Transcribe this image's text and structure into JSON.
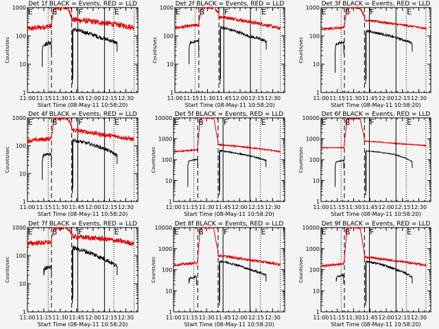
{
  "figure": {
    "background": "#f4f4f4",
    "colors": {
      "events": "#000000",
      "lld": "#e00000",
      "axes": "#000000"
    }
  },
  "chart_data": {
    "type": "line",
    "layout": "3x3 grid",
    "xlabel": "Start Time (08-May-11 10:58:20)",
    "ylabel": "Counts/sec",
    "yscale": "log",
    "x_unit": "minutes after 11:00",
    "xlim": [
      0,
      101
    ],
    "x_ticks": [
      0,
      15,
      30,
      45,
      60,
      75,
      90
    ],
    "x_tick_labels": [
      "11:00",
      "11:15",
      "11:30",
      "11:45",
      "12:00",
      "12:15",
      "12:30"
    ],
    "legend_text": "BLACK = Events, RED = LLD",
    "series_names": [
      "Events",
      "LLD"
    ],
    "marker_letters": [
      "E",
      "B",
      "F",
      "E"
    ],
    "panels": [
      {
        "title": "Det 1f BLACK = Events, RED = LLD",
        "ylim": [
          1,
          1000
        ],
        "y_tick_labels": [
          "1",
          "10",
          "100",
          "1000"
        ],
        "vlines": {
          "dotted": [
            19,
            79,
            97.5
          ],
          "dashed": [
            22,
            40.5
          ],
          "solid": [
            46,
            70.5
          ]
        },
        "lld": {
          "pre": 175,
          "pre_end": 220,
          "peak": 1000,
          "post": [
            380,
            290,
            200
          ],
          "noise": 0.1
        },
        "events": {
          "start": 13.5,
          "low": 8,
          "pre": 55,
          "gap_end": 22,
          "post_start": 41.5,
          "post": [
            170,
            90,
            55
          ],
          "end": 82,
          "noise": 0.07
        }
      },
      {
        "title": "Det 2f BLACK = Events, RED = LLD",
        "ylim": [
          1,
          1000
        ],
        "y_tick_labels": [
          "1",
          "10",
          "100",
          "1000"
        ],
        "vlines": {
          "dotted": [
            18.5,
            79,
            97
          ],
          "dashed": [
            22,
            40.5
          ],
          "solid": [
            45,
            69.5
          ]
        },
        "lld": {
          "pre": 190,
          "pre_end": 240,
          "peak": 1000,
          "post": [
            480,
            310,
            180
          ],
          "noise": 0.06
        },
        "events": {
          "start": 13,
          "low": 10,
          "pre": 65,
          "gap_end": 22,
          "post_start": 42,
          "post": [
            200,
            100,
            65
          ],
          "end": 84,
          "noise": 0.05
        }
      },
      {
        "title": "Det 3f BLACK = Events, RED = LLD",
        "ylim": [
          1,
          1000
        ],
        "y_tick_labels": [
          "1",
          "10",
          "100",
          "1000"
        ],
        "vlines": {
          "dotted": [
            18.5,
            78.5,
            96.5
          ],
          "dashed": [
            21.5,
            40
          ],
          "solid": [
            44.5,
            69
          ]
        },
        "lld": {
          "pre": 170,
          "pre_end": 200,
          "peak": 1000,
          "post": [
            360,
            260,
            180
          ],
          "noise": 0.04
        },
        "events": {
          "start": 13,
          "low": 5,
          "pre": 58,
          "gap_end": 21,
          "post_start": 41.5,
          "post": [
            150,
            90,
            55
          ],
          "end": 84,
          "noise": 0.04
        }
      },
      {
        "title": "Det 4f BLACK = Events, RED = LLD",
        "ylim": [
          1,
          1000
        ],
        "y_tick_labels": [
          "1",
          "10",
          "100",
          "1000"
        ],
        "vlines": {
          "dotted": [
            19,
            79,
            97.5
          ],
          "dashed": [
            22,
            40.5
          ],
          "solid": [
            46,
            70.5
          ]
        },
        "lld": {
          "pre": 150,
          "pre_end": 180,
          "peak": 1000,
          "post": [
            370,
            250,
            170
          ],
          "noise": 0.08
        },
        "events": {
          "start": 13.5,
          "low": 6,
          "pre": 50,
          "gap_end": 22,
          "post_start": 41.5,
          "post": [
            160,
            90,
            45
          ],
          "end": 82,
          "noise": 0.06
        }
      },
      {
        "title": "Det 5f BLACK = Events, RED = LLD",
        "ylim": [
          1,
          10000
        ],
        "y_tick_labels": [
          "1",
          "10",
          "100",
          "1000",
          "10000"
        ],
        "vlines": {
          "dotted": [
            18.5,
            79,
            97
          ],
          "dashed": [
            22,
            40.5
          ],
          "solid": [
            45,
            69.5
          ]
        },
        "lld": {
          "pre": 240,
          "pre_end": 300,
          "peak": 10000,
          "post": [
            520,
            380,
            240
          ],
          "noise": 0.03
        },
        "events": {
          "start": 13,
          "low": 5,
          "pre": 100,
          "gap_end": 22,
          "post_start": 42,
          "post": [
            270,
            160,
            90
          ],
          "end": 84,
          "noise": 0.03
        }
      },
      {
        "title": "Det 6f BLACK = Events, RED = LLD",
        "ylim": [
          1,
          10000
        ],
        "y_tick_labels": [
          "1",
          "10",
          "100",
          "1000",
          "10000"
        ],
        "vlines": {
          "dotted": [
            18.5,
            78.5,
            96.5
          ],
          "dashed": [
            21.5,
            40
          ],
          "solid": [
            44.5,
            69
          ]
        },
        "lld": {
          "pre": 370,
          "pre_end": 380,
          "peak": 9000,
          "post": [
            780,
            600,
            470
          ],
          "noise": 0.02
        },
        "events": {
          "start": 13,
          "low": 5,
          "pre": 90,
          "gap_end": 21,
          "post_start": 41.5,
          "post": [
            270,
            180,
            80
          ],
          "end": 84,
          "noise": 0.02
        }
      },
      {
        "title": "Det 7f BLACK = Events, RED = LLD",
        "ylim": [
          1,
          1000
        ],
        "y_tick_labels": [
          "1",
          "10",
          "100",
          "1000"
        ],
        "vlines": {
          "dotted": [
            19,
            79,
            97.5
          ],
          "dashed": [
            22,
            40.5
          ],
          "solid": [
            46,
            70.5
          ]
        },
        "lld": {
          "pre": 270,
          "pre_end": 300,
          "peak": 1000,
          "post": [
            480,
            400,
            270
          ],
          "noise": 0.09
        },
        "events": {
          "start": 15,
          "low": 35,
          "pre": 40,
          "gap_end": 22,
          "post_start": 41.5,
          "post": [
            190,
            90,
            40
          ],
          "end": 82,
          "noise": 0.08
        }
      },
      {
        "title": "Det 8f BLACK = Events, RED = LLD",
        "ylim": [
          1,
          10000
        ],
        "y_tick_labels": [
          "1",
          "10",
          "100",
          "1000",
          "10000"
        ],
        "vlines": {
          "dotted": [
            18.5,
            79,
            97
          ],
          "dashed": [
            22,
            40.5
          ],
          "solid": [
            45,
            69.5
          ]
        },
        "lld": {
          "pre": 165,
          "pre_end": 210,
          "peak": 10000,
          "post": [
            470,
            290,
            170
          ],
          "noise": 0.06
        },
        "events": {
          "start": 14,
          "low": 40,
          "pre": 45,
          "gap_end": 21,
          "post_start": 42,
          "post": [
            260,
            110,
            55
          ],
          "end": 84,
          "noise": 0.05
        }
      },
      {
        "title": "Det 9f BLACK = Events, RED = LLD",
        "ylim": [
          1,
          10000
        ],
        "y_tick_labels": [
          "1",
          "10",
          "100",
          "1000",
          "10000"
        ],
        "vlines": {
          "dotted": [
            18.5,
            78.5,
            96.5
          ],
          "dashed": [
            21.5,
            40
          ],
          "solid": [
            44.5,
            69
          ]
        },
        "lld": {
          "pre": 150,
          "pre_end": 190,
          "peak": 10000,
          "post": [
            400,
            260,
            160
          ],
          "noise": 0.05
        },
        "events": {
          "start": 14,
          "low": 40,
          "pre": 55,
          "gap_end": 21,
          "post_start": 41.5,
          "post": [
            250,
            110,
            45
          ],
          "end": 84,
          "noise": 0.05
        }
      }
    ]
  }
}
